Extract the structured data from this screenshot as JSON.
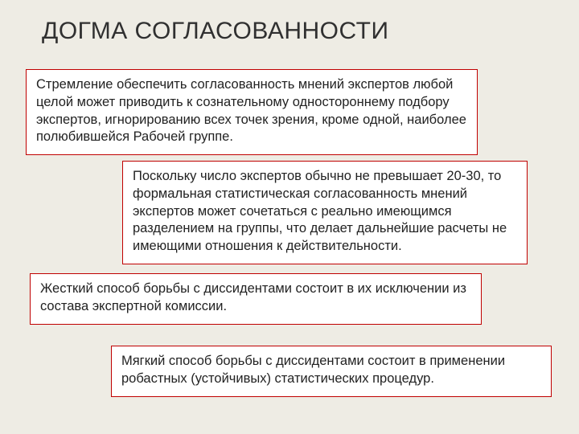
{
  "colors": {
    "background": "#eeece4",
    "box_border": "#c00000",
    "title_color": "#303030",
    "text_color": "#222222"
  },
  "title": "ДОГМА СОГЛАСОВАННОСТИ",
  "boxes": {
    "b1": "Стремление обеспечить согласованность мнений экспертов любой целой может приводить к сознательному одностороннему подбору экспертов, игнорированию всех точек зрения, кроме одной, наиболее полюбившейся Рабочей группе.",
    "b2": "Поскольку число экспертов обычно не превышает 20-30, то формальная статистическая согласованность мнений экспертов может сочетаться с реально имеющимся разделением на группы, что делает дальнейшие расчеты не имеющими отношения к действительности.",
    "b3": "Жесткий способ борьбы с диссидентами состоит в их исключении из состава экспертной комиссии.",
    "b4": "Мягкий способ борьбы с диссидентами состоит в применении робастных (устойчивых) статистических процедур."
  }
}
